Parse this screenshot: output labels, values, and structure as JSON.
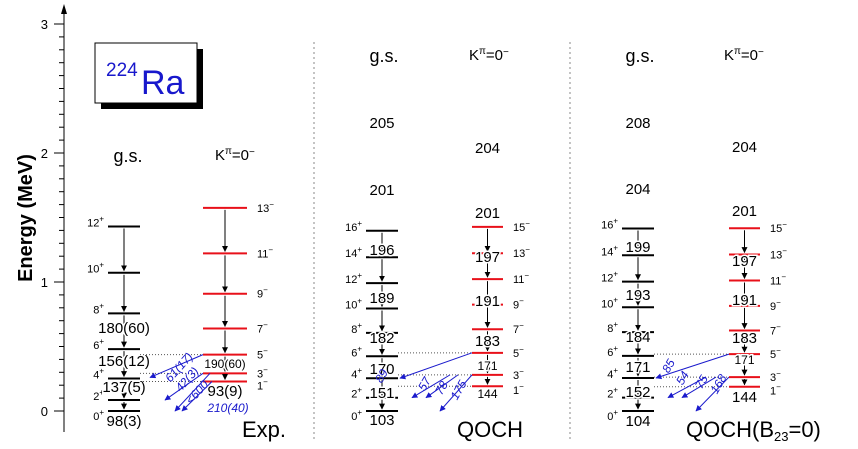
{
  "y_axis": {
    "label": "Energy (MeV)",
    "ticks": [
      "0",
      "1",
      "2",
      "3"
    ]
  },
  "nucleus": {
    "mass": "224",
    "element": "Ra"
  },
  "band_headers": {
    "gs": "g.s.",
    "k_main": "K",
    "k_sup": "π",
    "k_tail": "=0",
    "k_minus": "−"
  },
  "panels": [
    {
      "name": "Exp.",
      "name_main": "Exp.",
      "name_sub": "",
      "name_tail": ""
    },
    {
      "name": "QOCH",
      "name_main": "QOCH",
      "name_sub": "",
      "name_tail": ""
    },
    {
      "name": "QOCH(B23=0)",
      "name_main": "QOCH(B",
      "name_sub": "23",
      "name_tail": "=0)"
    }
  ],
  "exp": {
    "gs_spins": [
      "0+",
      "2+",
      "4+",
      "6+",
      "8+",
      "10+",
      "12+"
    ],
    "gs_transitions": [
      "98(3)",
      "137(5)",
      "156(12)",
      "180(60)"
    ],
    "neg_spins": [
      "1−",
      "3−",
      "5−",
      "7−",
      "9−",
      "11−",
      "13−"
    ],
    "neg_transitions": [
      "93(9)",
      "190(60)"
    ],
    "blue_labels": [
      "61(17)",
      "42(3)",
      "<600",
      "210(40)"
    ]
  },
  "qoch": {
    "gs_spins": [
      "0+",
      "2+",
      "4+",
      "6+",
      "8+",
      "10+",
      "12+",
      "14+",
      "16+"
    ],
    "gs_transitions": [
      "103",
      "151",
      "170",
      "182",
      "189",
      "196",
      "201",
      "205"
    ],
    "neg_spins": [
      "1−",
      "3−",
      "5−",
      "7−",
      "9−",
      "11−",
      "13−",
      "15−"
    ],
    "neg_transitions": [
      "144",
      "171",
      "183",
      "191",
      "197",
      "201",
      "204"
    ],
    "blue_labels": [
      "89",
      "57",
      "78",
      "175"
    ]
  },
  "qoch_b23": {
    "gs_spins": [
      "0+",
      "2+",
      "4+",
      "6+",
      "8+",
      "10+",
      "12+",
      "14+",
      "16+"
    ],
    "gs_transitions": [
      "104",
      "152",
      "171",
      "184",
      "193",
      "199",
      "204",
      "208"
    ],
    "neg_spins": [
      "1−",
      "3−",
      "5−",
      "7−",
      "9−",
      "11−",
      "13−",
      "15−"
    ],
    "neg_transitions": [
      "144",
      "171",
      "183",
      "191",
      "197",
      "201",
      "204"
    ],
    "blue_labels": [
      "85",
      "54",
      "75",
      "168"
    ]
  },
  "colors": {
    "gs_level": "#000000",
    "neg_level": "#e8101a",
    "arrow_blue": "#1a1acc",
    "frame": "#000000"
  }
}
